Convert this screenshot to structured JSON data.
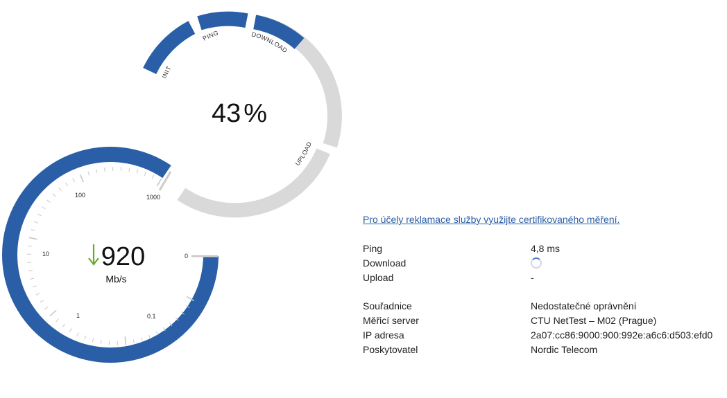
{
  "progress": {
    "percent": 43,
    "percent_sign": "%",
    "stages": [
      {
        "label": "INIT",
        "state": "done"
      },
      {
        "label": "PING",
        "state": "done"
      },
      {
        "label": "DOWNLOAD",
        "state": "active"
      },
      {
        "label": "UPLOAD",
        "state": "pending"
      }
    ]
  },
  "speed_gauge": {
    "value": "920",
    "unit": "Mb/s",
    "direction_icon": "arrow-down-icon",
    "tick_labels": [
      "0",
      "0.1",
      "1",
      "10",
      "100",
      "1000"
    ],
    "fill_fraction": 1.0
  },
  "certified_link": "Pro účely reklamace služby využijte certifikovaného měření.",
  "results": [
    {
      "label": "Ping",
      "value": "4,8 ms"
    },
    {
      "label": "Download",
      "value": "",
      "icon": "spinner-icon"
    },
    {
      "label": "Upload",
      "value": "-"
    }
  ],
  "details": [
    {
      "label": "Souřadnice",
      "value": "Nedostatečné oprávnění"
    },
    {
      "label": "Měřicí server",
      "value": "CTU NetTest – M02 (Prague)"
    },
    {
      "label": "IP adresa",
      "value": "2a07:cc86:9000:900:992e:a6c6:d503:efd0"
    },
    {
      "label": "Poskytovatel",
      "value": "Nordic Telecom"
    }
  ],
  "colors": {
    "active": "#2a5ea6",
    "inactive": "#d9d9d9",
    "download_arrow": "#6aa82f",
    "link": "#2a5ea6"
  }
}
